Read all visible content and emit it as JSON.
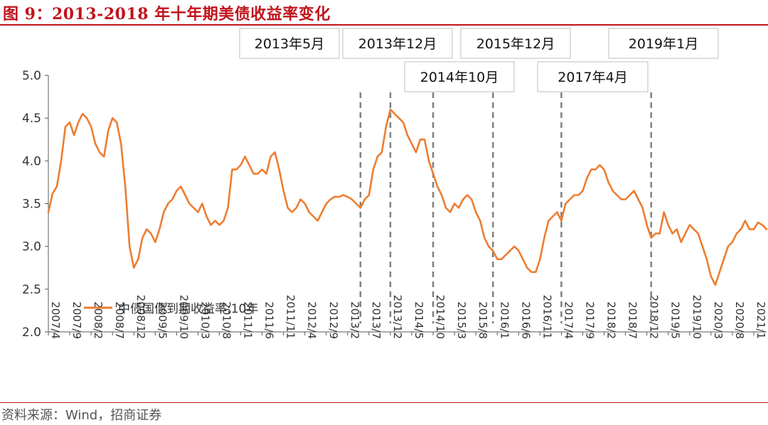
{
  "header": {
    "title": "图 9：2013-2018 年十年期美债收益率变化"
  },
  "footer": {
    "source": "资料来源：Wind，招商证券"
  },
  "colors": {
    "series": "#ED7D31",
    "accent": "#C0141C",
    "markers": "#808080",
    "axis": "#595959"
  },
  "chart_data": {
    "type": "line",
    "title": "",
    "xlabel": "",
    "ylabel": "",
    "ylim": [
      2.0,
      5.0
    ],
    "yticks": [
      2.0,
      2.5,
      3.0,
      3.5,
      4.0,
      4.5,
      5.0
    ],
    "grid": false,
    "legend_position": "bottom-left",
    "x_tick_labels": [
      "2007/4",
      "2007/9",
      "2008/2",
      "2008/7",
      "2008/12",
      "2009/5",
      "2009/10",
      "2010/3",
      "2010/8",
      "2011/1",
      "2011/6",
      "2011/11",
      "2012/4",
      "2012/9",
      "2013/2",
      "2013/7",
      "2013/12",
      "2014/5",
      "2014/10",
      "2015/3",
      "2015/8",
      "2016/1",
      "2016/6",
      "2016/11",
      "2017/4",
      "2017/9",
      "2018/2",
      "2018/7",
      "2018/12",
      "2019/5",
      "2019/10",
      "2020/3",
      "2020/8",
      "2021/1"
    ],
    "series": [
      {
        "name": "中债国债到期收益率:10年",
        "color": "#ED7D31",
        "points": [
          [
            "2007/4",
            3.4
          ],
          [
            "2007/5",
            3.62
          ],
          [
            "2007/6",
            3.7
          ],
          [
            "2007/7",
            4.0
          ],
          [
            "2007/8",
            4.4
          ],
          [
            "2007/9",
            4.45
          ],
          [
            "2007/10",
            4.3
          ],
          [
            "2007/11",
            4.45
          ],
          [
            "2007/12",
            4.55
          ],
          [
            "2008/1",
            4.5
          ],
          [
            "2008/2",
            4.4
          ],
          [
            "2008/3",
            4.2
          ],
          [
            "2008/4",
            4.1
          ],
          [
            "2008/5",
            4.05
          ],
          [
            "2008/6",
            4.35
          ],
          [
            "2008/7",
            4.5
          ],
          [
            "2008/8",
            4.45
          ],
          [
            "2008/9",
            4.2
          ],
          [
            "2008/10",
            3.7
          ],
          [
            "2008/11",
            3.0
          ],
          [
            "2008/12",
            2.75
          ],
          [
            "2009/1",
            2.85
          ],
          [
            "2009/2",
            3.1
          ],
          [
            "2009/3",
            3.2
          ],
          [
            "2009/4",
            3.15
          ],
          [
            "2009/5",
            3.05
          ],
          [
            "2009/6",
            3.2
          ],
          [
            "2009/7",
            3.4
          ],
          [
            "2009/8",
            3.5
          ],
          [
            "2009/9",
            3.55
          ],
          [
            "2009/10",
            3.65
          ],
          [
            "2009/11",
            3.7
          ],
          [
            "2009/12",
            3.6
          ],
          [
            "2010/1",
            3.5
          ],
          [
            "2010/2",
            3.45
          ],
          [
            "2010/3",
            3.4
          ],
          [
            "2010/4",
            3.5
          ],
          [
            "2010/5",
            3.35
          ],
          [
            "2010/6",
            3.25
          ],
          [
            "2010/7",
            3.3
          ],
          [
            "2010/8",
            3.25
          ],
          [
            "2010/9",
            3.3
          ],
          [
            "2010/10",
            3.45
          ],
          [
            "2010/11",
            3.9
          ],
          [
            "2010/12",
            3.9
          ],
          [
            "2011/1",
            3.95
          ],
          [
            "2011/2",
            4.05
          ],
          [
            "2011/3",
            3.95
          ],
          [
            "2011/4",
            3.85
          ],
          [
            "2011/5",
            3.85
          ],
          [
            "2011/6",
            3.9
          ],
          [
            "2011/7",
            3.85
          ],
          [
            "2011/8",
            4.05
          ],
          [
            "2011/9",
            4.1
          ],
          [
            "2011/10",
            3.9
          ],
          [
            "2011/11",
            3.65
          ],
          [
            "2011/12",
            3.45
          ],
          [
            "2012/1",
            3.4
          ],
          [
            "2012/2",
            3.45
          ],
          [
            "2012/3",
            3.55
          ],
          [
            "2012/4",
            3.5
          ],
          [
            "2012/5",
            3.4
          ],
          [
            "2012/6",
            3.35
          ],
          [
            "2012/7",
            3.3
          ],
          [
            "2012/8",
            3.4
          ],
          [
            "2012/9",
            3.5
          ],
          [
            "2012/10",
            3.55
          ],
          [
            "2012/11",
            3.58
          ],
          [
            "2012/12",
            3.58
          ],
          [
            "2013/1",
            3.6
          ],
          [
            "2013/2",
            3.58
          ],
          [
            "2013/3",
            3.55
          ],
          [
            "2013/4",
            3.5
          ],
          [
            "2013/5",
            3.45
          ],
          [
            "2013/6",
            3.55
          ],
          [
            "2013/7",
            3.6
          ],
          [
            "2013/8",
            3.9
          ],
          [
            "2013/9",
            4.05
          ],
          [
            "2013/10",
            4.1
          ],
          [
            "2013/11",
            4.4
          ],
          [
            "2013/12",
            4.6
          ],
          [
            "2014/1",
            4.55
          ],
          [
            "2014/2",
            4.5
          ],
          [
            "2014/3",
            4.45
          ],
          [
            "2014/4",
            4.3
          ],
          [
            "2014/5",
            4.2
          ],
          [
            "2014/6",
            4.1
          ],
          [
            "2014/7",
            4.25
          ],
          [
            "2014/8",
            4.25
          ],
          [
            "2014/9",
            4.0
          ],
          [
            "2014/10",
            3.85
          ],
          [
            "2014/11",
            3.7
          ],
          [
            "2014/12",
            3.6
          ],
          [
            "2015/1",
            3.45
          ],
          [
            "2015/2",
            3.4
          ],
          [
            "2015/3",
            3.5
          ],
          [
            "2015/4",
            3.45
          ],
          [
            "2015/5",
            3.55
          ],
          [
            "2015/6",
            3.6
          ],
          [
            "2015/7",
            3.55
          ],
          [
            "2015/8",
            3.4
          ],
          [
            "2015/9",
            3.3
          ],
          [
            "2015/10",
            3.1
          ],
          [
            "2015/11",
            3.0
          ],
          [
            "2015/12",
            2.95
          ],
          [
            "2016/1",
            2.85
          ],
          [
            "2016/2",
            2.85
          ],
          [
            "2016/3",
            2.9
          ],
          [
            "2016/4",
            2.95
          ],
          [
            "2016/5",
            3.0
          ],
          [
            "2016/6",
            2.95
          ],
          [
            "2016/7",
            2.85
          ],
          [
            "2016/8",
            2.75
          ],
          [
            "2016/9",
            2.7
          ],
          [
            "2016/10",
            2.7
          ],
          [
            "2016/11",
            2.85
          ],
          [
            "2016/12",
            3.1
          ],
          [
            "2017/1",
            3.3
          ],
          [
            "2017/2",
            3.35
          ],
          [
            "2017/3",
            3.4
          ],
          [
            "2017/4",
            3.3
          ],
          [
            "2017/5",
            3.5
          ],
          [
            "2017/6",
            3.55
          ],
          [
            "2017/7",
            3.6
          ],
          [
            "2017/8",
            3.6
          ],
          [
            "2017/9",
            3.65
          ],
          [
            "2017/10",
            3.8
          ],
          [
            "2017/11",
            3.9
          ],
          [
            "2017/12",
            3.9
          ],
          [
            "2018/1",
            3.95
          ],
          [
            "2018/2",
            3.9
          ],
          [
            "2018/3",
            3.75
          ],
          [
            "2018/4",
            3.65
          ],
          [
            "2018/5",
            3.6
          ],
          [
            "2018/6",
            3.55
          ],
          [
            "2018/7",
            3.55
          ],
          [
            "2018/8",
            3.6
          ],
          [
            "2018/9",
            3.65
          ],
          [
            "2018/10",
            3.55
          ],
          [
            "2018/11",
            3.45
          ],
          [
            "2018/12",
            3.25
          ],
          [
            "2019/1",
            3.1
          ],
          [
            "2019/2",
            3.15
          ],
          [
            "2019/3",
            3.15
          ],
          [
            "2019/4",
            3.4
          ],
          [
            "2019/5",
            3.25
          ],
          [
            "2019/6",
            3.15
          ],
          [
            "2019/7",
            3.2
          ],
          [
            "2019/8",
            3.05
          ],
          [
            "2019/9",
            3.15
          ],
          [
            "2019/10",
            3.25
          ],
          [
            "2019/11",
            3.2
          ],
          [
            "2019/12",
            3.15
          ],
          [
            "2020/1",
            3.0
          ],
          [
            "2020/2",
            2.85
          ],
          [
            "2020/3",
            2.65
          ],
          [
            "2020/4",
            2.55
          ],
          [
            "2020/5",
            2.7
          ],
          [
            "2020/6",
            2.85
          ],
          [
            "2020/7",
            3.0
          ],
          [
            "2020/8",
            3.05
          ],
          [
            "2020/9",
            3.15
          ],
          [
            "2020/10",
            3.2
          ],
          [
            "2020/11",
            3.3
          ],
          [
            "2020/12",
            3.2
          ],
          [
            "2021/1",
            3.2
          ],
          [
            "2021/2",
            3.28
          ],
          [
            "2021/3",
            3.25
          ],
          [
            "2021/4",
            3.2
          ]
        ]
      }
    ],
    "events": [
      {
        "date": "2013/5",
        "label": "2013年5月"
      },
      {
        "date": "2013/12",
        "label": "2013年12月"
      },
      {
        "date": "2014/10",
        "label": "2014年10月"
      },
      {
        "date": "2015/12",
        "label": "2015年12月"
      },
      {
        "date": "2017/4",
        "label": "2017年4月"
      },
      {
        "date": "2019/1",
        "label": "2019年1月"
      }
    ]
  }
}
